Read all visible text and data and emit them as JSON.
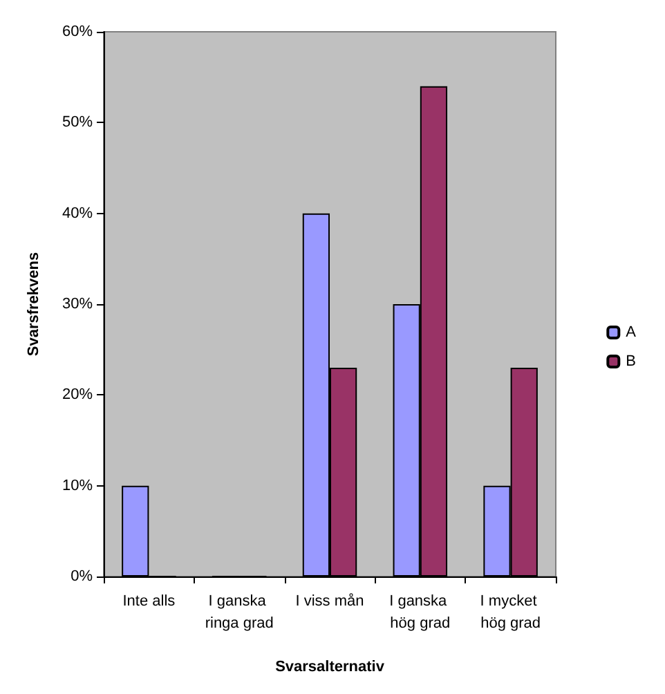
{
  "chart_data": {
    "type": "bar",
    "xlabel": "Svarsalternativ",
    "ylabel": "Svarsfrekvens",
    "categories": [
      "Inte alls",
      "I ganska ringa grad",
      "I viss mån",
      "I ganska hög grad",
      "I mycket hög grad"
    ],
    "series": [
      {
        "name": "A",
        "color": "#9999ff",
        "values": [
          10,
          0,
          40,
          30,
          10
        ]
      },
      {
        "name": "B",
        "color": "#993366",
        "values": [
          0,
          0,
          23,
          54,
          23
        ]
      }
    ],
    "ylim": [
      0,
      60
    ],
    "yticks": [
      {
        "value": 0,
        "label": "0%"
      },
      {
        "value": 10,
        "label": "10%"
      },
      {
        "value": 20,
        "label": "20%"
      },
      {
        "value": 30,
        "label": "30%"
      },
      {
        "value": 40,
        "label": "40%"
      },
      {
        "value": 50,
        "label": "50%"
      },
      {
        "value": 60,
        "label": "60%"
      }
    ],
    "grid": false,
    "legend": "right"
  }
}
